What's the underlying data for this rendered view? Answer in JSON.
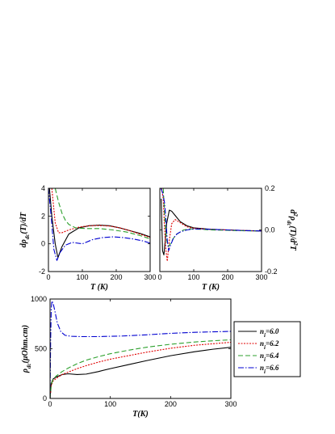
{
  "chart_data": [
    {
      "type": "line",
      "panel": "top-left",
      "xlabel": "T (K)",
      "ylabel": "dρ_dc(T)/dT",
      "xlim": [
        0,
        300
      ],
      "ylim": [
        -2,
        4
      ],
      "xticks": [
        0,
        100,
        200,
        300
      ],
      "yticks": [
        -2,
        0,
        2,
        4
      ],
      "grid": false,
      "series": [
        {
          "name": "n_i=6.0",
          "color": "#000000",
          "dash": "",
          "x": [
            3,
            10,
            20,
            28,
            40,
            60,
            90,
            120,
            150,
            180,
            210,
            240,
            270,
            300
          ],
          "y": [
            4.0,
            2.0,
            0.0,
            -1.0,
            -0.2,
            0.7,
            1.15,
            1.3,
            1.35,
            1.3,
            1.15,
            0.95,
            0.75,
            0.5
          ]
        },
        {
          "name": "n_i=6.2",
          "color": "#e00000",
          "dash": "2,1.5",
          "x": [
            10,
            20,
            30,
            40,
            60,
            90,
            120,
            150,
            180,
            210,
            240,
            270,
            300
          ],
          "y": [
            4.0,
            1.5,
            0.8,
            0.8,
            1.0,
            1.2,
            1.3,
            1.32,
            1.28,
            1.15,
            0.95,
            0.7,
            0.45
          ]
        },
        {
          "name": "n_i=6.4",
          "color": "#2ca02c",
          "dash": "6,3",
          "x": [
            20,
            30,
            40,
            50,
            60,
            80,
            110,
            150,
            190,
            230,
            270,
            300
          ],
          "y": [
            4.0,
            3.0,
            2.2,
            1.7,
            1.4,
            1.15,
            1.1,
            1.1,
            1.0,
            0.85,
            0.6,
            0.35
          ]
        },
        {
          "name": "n_i=6.6",
          "color": "#0000d0",
          "dash": "7,2,1.5,2",
          "x": [
            0,
            8,
            16,
            25,
            35,
            50,
            70,
            100,
            130,
            160,
            190,
            220,
            250,
            280,
            300
          ],
          "y": [
            4.0,
            2.0,
            -0.4,
            -1.2,
            -0.6,
            -0.1,
            0.1,
            0.0,
            0.3,
            0.45,
            0.5,
            0.45,
            0.35,
            0.2,
            0.05
          ]
        }
      ]
    },
    {
      "type": "line",
      "panel": "top-right",
      "xlabel": "T (K)",
      "ylabel": "d²ρ_dc(T)/d²T",
      "xlim": [
        0,
        300
      ],
      "ylim": [
        -0.2,
        0.2
      ],
      "xticks": [
        0,
        100,
        200,
        300
      ],
      "yticks": [
        -0.2,
        0.0,
        0.2
      ],
      "ytick_labels": [
        "-0.2",
        "0.0",
        "0.2"
      ],
      "grid": false,
      "series": [
        {
          "name": "n_i=6.0",
          "color": "#000000",
          "dash": "",
          "x": [
            4,
            8,
            12,
            16,
            20,
            28,
            35,
            45,
            60,
            80,
            100,
            150,
            200,
            250,
            300
          ],
          "y": [
            0.15,
            -0.1,
            -0.12,
            -0.05,
            0.03,
            0.095,
            0.09,
            0.07,
            0.04,
            0.02,
            0.01,
            0.003,
            0.0,
            -0.003,
            -0.005
          ]
        },
        {
          "name": "n_i=6.2",
          "color": "#e00000",
          "dash": "2,1.5",
          "x": [
            5,
            10,
            14,
            18,
            22,
            28,
            35,
            45,
            60,
            80,
            100,
            150,
            200,
            250,
            300
          ],
          "y": [
            0.2,
            0.15,
            0.0,
            -0.1,
            -0.15,
            -0.05,
            0.03,
            0.05,
            0.035,
            0.015,
            0.008,
            0.002,
            0.0,
            -0.003,
            -0.005
          ]
        },
        {
          "name": "n_i=6.4",
          "color": "#2ca02c",
          "dash": "6,3",
          "x": [
            10,
            15,
            20,
            25,
            30,
            40,
            50,
            70,
            90,
            120,
            150,
            200,
            250,
            300
          ],
          "y": [
            0.2,
            0.05,
            -0.05,
            -0.08,
            -0.07,
            -0.04,
            -0.02,
            0.0,
            0.005,
            0.003,
            0.0,
            -0.002,
            -0.004,
            -0.005
          ]
        },
        {
          "name": "n_i=6.6",
          "color": "#0000d0",
          "dash": "7,2,1.5,2",
          "x": [
            3,
            8,
            14,
            18,
            22,
            26,
            30,
            40,
            50,
            60,
            80,
            100,
            150,
            200,
            250,
            300
          ],
          "y": [
            0.2,
            0.18,
            0.13,
            0.05,
            -0.05,
            -0.1,
            -0.08,
            -0.04,
            -0.02,
            -0.01,
            0.0,
            0.005,
            0.003,
            0.0,
            -0.003,
            -0.005
          ]
        }
      ]
    },
    {
      "type": "line",
      "panel": "bottom",
      "xlabel": "T(K)",
      "ylabel": "ρ_dc(μOhm.cm)",
      "xlim": [
        0,
        300
      ],
      "ylim": [
        0,
        1000
      ],
      "xticks": [
        0,
        100,
        200,
        300
      ],
      "yticks": [
        0,
        500,
        1000
      ],
      "grid": false,
      "legend": "right",
      "series": [
        {
          "name": "n_i=6.0",
          "color": "#000000",
          "dash": "",
          "x": [
            0,
            2,
            5,
            10,
            20,
            30,
            45,
            60,
            80,
            100,
            130,
            160,
            200,
            240,
            270,
            300
          ],
          "y": [
            0,
            150,
            195,
            215,
            240,
            248,
            240,
            245,
            270,
            300,
            340,
            380,
            430,
            470,
            495,
            515
          ]
        },
        {
          "name": "n_i=6.2",
          "color": "#e00000",
          "dash": "2,1.5",
          "x": [
            0,
            2,
            5,
            10,
            20,
            30,
            45,
            60,
            80,
            100,
            130,
            160,
            200,
            240,
            270,
            300
          ],
          "y": [
            0,
            130,
            175,
            200,
            240,
            265,
            300,
            330,
            365,
            395,
            430,
            465,
            505,
            535,
            550,
            565
          ]
        },
        {
          "name": "n_i=6.4",
          "color": "#2ca02c",
          "dash": "6,3",
          "x": [
            0,
            2,
            5,
            10,
            20,
            30,
            45,
            60,
            80,
            100,
            130,
            160,
            200,
            240,
            270,
            300
          ],
          "y": [
            0,
            140,
            190,
            225,
            270,
            305,
            350,
            385,
            420,
            450,
            485,
            515,
            545,
            568,
            580,
            590
          ]
        },
        {
          "name": "n_i=6.6",
          "color": "#0000d0",
          "dash": "7,2,1.5,2",
          "x": [
            0,
            1,
            2,
            3,
            5,
            8,
            12,
            18,
            25,
            35,
            50,
            80,
            120,
            160,
            200,
            240,
            300
          ],
          "y": [
            0,
            600,
            900,
            980,
            960,
            880,
            760,
            670,
            635,
            625,
            622,
            622,
            628,
            640,
            655,
            665,
            675
          ]
        }
      ]
    }
  ],
  "legend": {
    "entries": [
      "n_i=6.0",
      "n_i=6.2",
      "n_i=6.4",
      "n_i=6.6"
    ]
  }
}
